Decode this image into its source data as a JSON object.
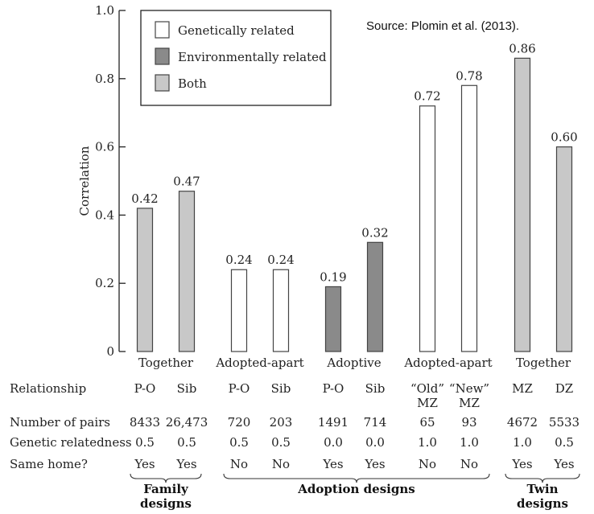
{
  "source": "Source: Plomin et al. (2013).",
  "colors": {
    "genetic": "#ffffff",
    "environmental": "#8a8a8a",
    "both": "#c8c8c8",
    "stroke": "#444444"
  },
  "chart_data": {
    "type": "bar",
    "ylabel": "Correlation",
    "ylim": [
      0,
      1.0
    ],
    "yticks": [
      "0",
      "0.2",
      "0.4",
      "0.6",
      "0.8",
      "1.0"
    ],
    "legend": {
      "placement": "top-left",
      "entries": [
        {
          "label": "Genetically related",
          "kind": "genetic"
        },
        {
          "label": "Environmentally related",
          "kind": "environmental"
        },
        {
          "label": "Both",
          "kind": "both"
        }
      ]
    },
    "bars": [
      {
        "relationship": "P-O",
        "value": 0.42,
        "label": "0.42",
        "kind": "both"
      },
      {
        "relationship": "Sib",
        "value": 0.47,
        "label": "0.47",
        "kind": "both"
      },
      {
        "relationship": "P-O",
        "value": 0.24,
        "label": "0.24",
        "kind": "genetic"
      },
      {
        "relationship": "Sib",
        "value": 0.24,
        "label": "0.24",
        "kind": "genetic"
      },
      {
        "relationship": "P-O",
        "value": 0.19,
        "label": "0.19",
        "kind": "environmental"
      },
      {
        "relationship": "Sib",
        "value": 0.32,
        "label": "0.32",
        "kind": "environmental"
      },
      {
        "relationship": "“Old” MZ",
        "value": 0.72,
        "label": "0.72",
        "kind": "genetic"
      },
      {
        "relationship": "“New” MZ",
        "value": 0.78,
        "label": "0.78",
        "kind": "genetic"
      },
      {
        "relationship": "MZ",
        "value": 0.86,
        "label": "0.86",
        "kind": "both"
      },
      {
        "relationship": "DZ",
        "value": 0.6,
        "label": "0.60",
        "kind": "both"
      }
    ],
    "category_groups": [
      "Together",
      "Adopted-apart",
      "Adoptive",
      "Adopted-apart",
      "Together"
    ],
    "table": {
      "row_labels": [
        "Relationship",
        "Number of pairs",
        "Genetic relatedness",
        "Same home?"
      ],
      "relationship": [
        [
          "P-O"
        ],
        [
          "Sib"
        ],
        [
          "P-O"
        ],
        [
          "Sib"
        ],
        [
          "P-O"
        ],
        [
          "Sib"
        ],
        [
          "“Old”",
          "MZ"
        ],
        [
          "“New”",
          "MZ"
        ],
        [
          "MZ"
        ],
        [
          "DZ"
        ]
      ],
      "number_of_pairs": [
        "8433",
        "26,473",
        "720",
        "203",
        "1491",
        "714",
        "65",
        "93",
        "4672",
        "5533"
      ],
      "genetic_relatedness": [
        "0.5",
        "0.5",
        "0.5",
        "0.5",
        "0.0",
        "0.0",
        "1.0",
        "1.0",
        "1.0",
        "0.5"
      ],
      "same_home": [
        "Yes",
        "Yes",
        "No",
        "No",
        "Yes",
        "Yes",
        "No",
        "No",
        "Yes",
        "Yes"
      ]
    },
    "design_groups": [
      {
        "lines": [
          "Family",
          "designs"
        ]
      },
      {
        "lines": [
          "Adoption designs"
        ]
      },
      {
        "lines": [
          "Twin",
          "designs"
        ]
      }
    ]
  }
}
